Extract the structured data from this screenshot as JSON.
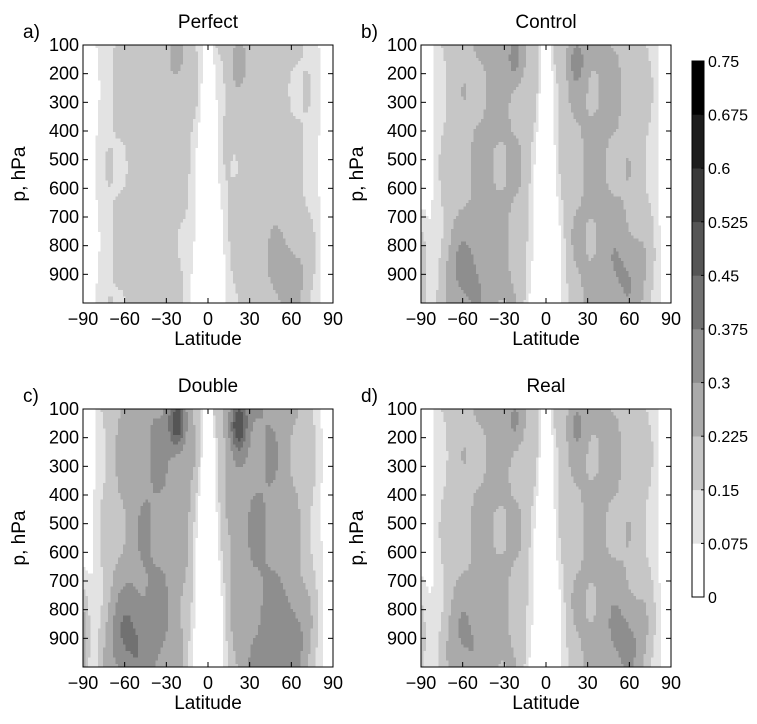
{
  "chart_data": [
    {
      "type": "heatmap",
      "panel_label": "a)",
      "title": "Perfect",
      "xlabel": "Latitude",
      "ylabel": "p, hPa",
      "xlim": [
        -90,
        90
      ],
      "ylim": [
        100,
        1000
      ],
      "xticks": [
        -90,
        -60,
        -30,
        0,
        30,
        60,
        90
      ],
      "xtick_labels": [
        "−90",
        "−60",
        "−30",
        "0",
        "30",
        "60",
        "90"
      ],
      "yticks": [
        100,
        200,
        300,
        400,
        500,
        600,
        700,
        800,
        900
      ],
      "ytick_labels": [
        "100",
        "200",
        "300",
        "400",
        "500",
        "600",
        "700",
        "800",
        "900"
      ],
      "y_inverted": true,
      "profile": {
        "eq_amp": 0.27,
        "eq_base": 0.19,
        "polar_s": 0.14,
        "polar_n": 0.13,
        "floor": 0.12,
        "jet": 0.09,
        "sfc_s": 0.0,
        "sfc_n": 0.1,
        "pole_spike": 0.0
      }
    },
    {
      "type": "heatmap",
      "panel_label": "b)",
      "title": "Control",
      "xlabel": "Latitude",
      "ylabel": "p, hPa",
      "xlim": [
        -90,
        90
      ],
      "ylim": [
        100,
        1000
      ],
      "xticks": [
        -90,
        -60,
        -30,
        0,
        30,
        60,
        90
      ],
      "xtick_labels": [
        "−90",
        "−60",
        "−30",
        "0",
        "30",
        "60",
        "90"
      ],
      "yticks": [
        100,
        200,
        300,
        400,
        500,
        600,
        700,
        800,
        900
      ],
      "ytick_labels": [
        "100",
        "200",
        "300",
        "400",
        "500",
        "600",
        "700",
        "800",
        "900"
      ],
      "y_inverted": true,
      "profile": {
        "eq_amp": 0.3,
        "eq_base": 0.24,
        "polar_s": 0.14,
        "polar_n": 0.14,
        "floor": 0.13,
        "jet": 0.12,
        "sfc_s": 0.12,
        "sfc_n": 0.1,
        "pole_spike": 0.22
      }
    },
    {
      "type": "heatmap",
      "panel_label": "c)",
      "title": "Double",
      "xlabel": "Latitude",
      "ylabel": "p, hPa",
      "xlim": [
        -90,
        90
      ],
      "ylim": [
        100,
        1000
      ],
      "xticks": [
        -90,
        -60,
        -30,
        0,
        30,
        60,
        90
      ],
      "xtick_labels": [
        "−90",
        "−60",
        "−30",
        "0",
        "30",
        "60",
        "90"
      ],
      "yticks": [
        100,
        200,
        300,
        400,
        500,
        600,
        700,
        800,
        900
      ],
      "ytick_labels": [
        "100",
        "200",
        "300",
        "400",
        "500",
        "600",
        "700",
        "800",
        "900"
      ],
      "y_inverted": true,
      "profile": {
        "eq_amp": 0.36,
        "eq_base": 0.3,
        "polar_s": 0.15,
        "polar_n": 0.15,
        "floor": 0.13,
        "jet": 0.25,
        "sfc_s": 0.14,
        "sfc_n": 0.12,
        "pole_spike": 0.28
      }
    },
    {
      "type": "heatmap",
      "panel_label": "d)",
      "title": "Real",
      "xlabel": "Latitude",
      "ylabel": "p, hPa",
      "xlim": [
        -90,
        90
      ],
      "ylim": [
        100,
        1000
      ],
      "xticks": [
        -90,
        -60,
        -30,
        0,
        30,
        60,
        90
      ],
      "xtick_labels": [
        "−90",
        "−60",
        "−30",
        "0",
        "30",
        "60",
        "90"
      ],
      "yticks": [
        100,
        200,
        300,
        400,
        500,
        600,
        700,
        800,
        900
      ],
      "ytick_labels": [
        "100",
        "200",
        "300",
        "400",
        "500",
        "600",
        "700",
        "800",
        "900"
      ],
      "y_inverted": true,
      "profile": {
        "eq_amp": 0.3,
        "eq_base": 0.24,
        "polar_s": 0.15,
        "polar_n": 0.14,
        "floor": 0.13,
        "jet": 0.1,
        "sfc_s": 0.1,
        "sfc_n": 0.12,
        "pole_spike": 0.2
      }
    }
  ],
  "colorbar": {
    "min": 0,
    "max": 0.75,
    "levels": [
      0,
      0.075,
      0.15,
      0.225,
      0.3,
      0.375,
      0.45,
      0.525,
      0.6,
      0.675,
      0.75
    ],
    "tick_labels": [
      "0",
      "0.075",
      "0.15",
      "0.225",
      "0.3",
      "0.375",
      "0.45",
      "0.525",
      "0.6",
      "0.675",
      "0.75"
    ],
    "colormap": "gray-reversed",
    "color_low": "#ffffff",
    "color_high": "#000000"
  }
}
